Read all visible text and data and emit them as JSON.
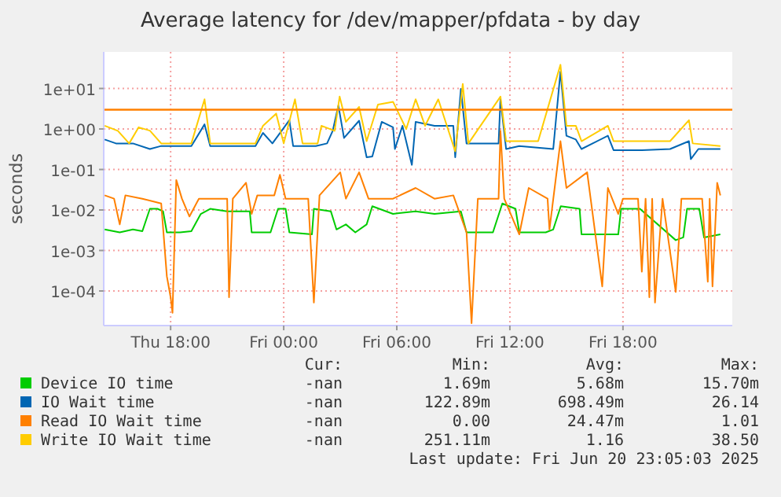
{
  "chart_data": {
    "type": "line",
    "title": "Average latency for /dev/mapper/pfdata - by day",
    "ylabel": "seconds",
    "log": "y",
    "xlim": [
      "2025-06-19T14:27",
      "2025-06-20T23:48"
    ],
    "xticks": [
      {
        "value": "2025-06-19T18:00",
        "label": "Thu 18:00"
      },
      {
        "value": "2025-06-20T00:00",
        "label": "Fri 00:00"
      },
      {
        "value": "2025-06-20T06:00",
        "label": "Fri 06:00"
      },
      {
        "value": "2025-06-20T12:00",
        "label": "Fri 12:00"
      },
      {
        "value": "2025-06-20T18:00",
        "label": "Fri 18:00"
      }
    ],
    "ylim": [
      1.4e-05,
      80
    ],
    "yticks": [
      {
        "value": 0.0001,
        "label": "1e-04"
      },
      {
        "value": 0.001,
        "label": "1e-03"
      },
      {
        "value": 0.01,
        "label": "1e-02"
      },
      {
        "value": 0.1,
        "label": "1e-01"
      },
      {
        "value": 1,
        "label": "1e+00"
      },
      {
        "value": 10,
        "label": "1e+01"
      }
    ],
    "grid": true,
    "legend": "bottom",
    "ref_lines": [
      {
        "axis": "y",
        "value": 3,
        "color": "#ff8000"
      }
    ],
    "series": [
      {
        "name": "Device IO time",
        "color": "#00cc00",
        "x": [
          "2025-06-19T14:30",
          "2025-06-19T15:18",
          "2025-06-19T16:00",
          "2025-06-19T16:30",
          "2025-06-19T16:54",
          "2025-06-19T17:18",
          "2025-06-19T17:36",
          "2025-06-19T17:48",
          "2025-06-19T18:30",
          "2025-06-19T19:06",
          "2025-06-19T19:36",
          "2025-06-19T20:06",
          "2025-06-19T21:00",
          "2025-06-19T22:12",
          "2025-06-19T22:18",
          "2025-06-19T23:18",
          "2025-06-19T23:42",
          "2025-06-20T00:06",
          "2025-06-20T00:18",
          "2025-06-20T01:30",
          "2025-06-20T01:36",
          "2025-06-20T02:30",
          "2025-06-20T02:48",
          "2025-06-20T03:18",
          "2025-06-20T03:48",
          "2025-06-20T04:24",
          "2025-06-20T04:42",
          "2025-06-20T05:48",
          "2025-06-20T07:00",
          "2025-06-20T08:00",
          "2025-06-20T09:24",
          "2025-06-20T09:42",
          "2025-06-20T11:06",
          "2025-06-20T11:36",
          "2025-06-20T12:18",
          "2025-06-20T12:30",
          "2025-06-20T13:54",
          "2025-06-20T14:18",
          "2025-06-20T14:42",
          "2025-06-20T15:42",
          "2025-06-20T15:48",
          "2025-06-20T17:45",
          "2025-06-20T17:54",
          "2025-06-20T18:54",
          "2025-06-20T20:48",
          "2025-06-20T21:12",
          "2025-06-20T21:24",
          "2025-06-20T22:03",
          "2025-06-20T22:18",
          "2025-06-20T23:10"
        ],
        "values": [
          0.0033,
          0.0028,
          0.0033,
          0.003,
          0.0107,
          0.0107,
          0.0093,
          0.0028,
          0.0028,
          0.003,
          0.008,
          0.0107,
          0.0093,
          0.0093,
          0.0028,
          0.0028,
          0.0107,
          0.0107,
          0.0028,
          0.0025,
          0.0107,
          0.0093,
          0.0033,
          0.0044,
          0.0028,
          0.0044,
          0.0124,
          0.008,
          0.0093,
          0.008,
          0.0093,
          0.0028,
          0.0028,
          0.0145,
          0.0107,
          0.0028,
          0.0028,
          0.0033,
          0.0124,
          0.0107,
          0.0025,
          0.0025,
          0.0107,
          0.0107,
          0.0018,
          0.0021,
          0.0107,
          0.0107,
          0.0021,
          0.0025
        ]
      },
      {
        "name": "IO Wait time",
        "color": "#0066b3",
        "x": [
          "2025-06-19T14:30",
          "2025-06-19T15:06",
          "2025-06-19T16:00",
          "2025-06-19T16:54",
          "2025-06-19T17:30",
          "2025-06-19T18:30",
          "2025-06-19T19:06",
          "2025-06-19T19:48",
          "2025-06-19T20:06",
          "2025-06-19T21:00",
          "2025-06-19T22:30",
          "2025-06-19T22:54",
          "2025-06-19T23:24",
          "2025-06-20T00:18",
          "2025-06-20T00:30",
          "2025-06-20T01:42",
          "2025-06-20T02:18",
          "2025-06-20T02:36",
          "2025-06-20T02:54",
          "2025-06-20T03:12",
          "2025-06-20T04:00",
          "2025-06-20T04:24",
          "2025-06-20T04:42",
          "2025-06-20T05:12",
          "2025-06-20T05:48",
          "2025-06-20T05:54",
          "2025-06-20T06:18",
          "2025-06-20T06:48",
          "2025-06-20T07:00",
          "2025-06-20T08:00",
          "2025-06-20T09:00",
          "2025-06-20T09:06",
          "2025-06-20T09:24",
          "2025-06-20T09:42",
          "2025-06-20T11:24",
          "2025-06-20T11:30",
          "2025-06-20T11:48",
          "2025-06-20T12:30",
          "2025-06-20T14:18",
          "2025-06-20T14:41",
          "2025-06-20T15:00",
          "2025-06-20T15:30",
          "2025-06-20T15:48",
          "2025-06-20T17:12",
          "2025-06-20T17:30",
          "2025-06-20T19:00",
          "2025-06-20T20:30",
          "2025-06-20T21:30",
          "2025-06-20T21:36",
          "2025-06-20T22:00",
          "2025-06-20T23:10"
        ],
        "values": [
          0.55,
          0.44,
          0.44,
          0.32,
          0.38,
          0.38,
          0.38,
          1.3,
          0.38,
          0.38,
          0.38,
          0.8,
          0.44,
          1.65,
          0.38,
          0.38,
          0.44,
          0.9,
          3.8,
          0.6,
          1.6,
          0.2,
          0.21,
          1.5,
          1.1,
          0.32,
          1.2,
          0.13,
          1.5,
          1.2,
          1.2,
          0.2,
          9.8,
          0.44,
          0.44,
          5.4,
          0.32,
          0.38,
          0.32,
          26,
          0.68,
          0.55,
          0.32,
          0.68,
          0.3,
          0.3,
          0.32,
          0.5,
          0.18,
          0.32,
          0.32
        ]
      },
      {
        "name": "Read IO Wait time",
        "color": "#ff8000",
        "x": [
          "2025-06-19T14:30",
          "2025-06-19T15:00",
          "2025-06-19T15:18",
          "2025-06-19T15:36",
          "2025-06-19T16:30",
          "2025-06-19T17:30",
          "2025-06-19T17:48",
          "2025-06-19T18:00",
          "2025-06-19T18:06",
          "2025-06-19T18:18",
          "2025-06-19T18:36",
          "2025-06-19T19:00",
          "2025-06-19T19:30",
          "2025-06-19T21:00",
          "2025-06-19T21:06",
          "2025-06-19T21:18",
          "2025-06-19T22:00",
          "2025-06-19T22:18",
          "2025-06-19T22:36",
          "2025-06-19T23:30",
          "2025-06-19T23:48",
          "2025-06-20T00:06",
          "2025-06-20T01:18",
          "2025-06-20T01:36",
          "2025-06-20T01:54",
          "2025-06-20T03:00",
          "2025-06-20T03:18",
          "2025-06-20T04:00",
          "2025-06-20T04:30",
          "2025-06-20T05:48",
          "2025-06-20T07:00",
          "2025-06-20T08:00",
          "2025-06-20T09:00",
          "2025-06-20T09:42",
          "2025-06-20T09:58",
          "2025-06-20T10:18",
          "2025-06-20T11:24",
          "2025-06-20T11:30",
          "2025-06-20T11:42",
          "2025-06-20T12:30",
          "2025-06-20T13:00",
          "2025-06-20T14:00",
          "2025-06-20T14:06",
          "2025-06-20T14:41",
          "2025-06-20T15:00",
          "2025-06-20T16:06",
          "2025-06-20T16:54",
          "2025-06-20T17:12",
          "2025-06-20T17:45",
          "2025-06-20T18:00",
          "2025-06-20T18:48",
          "2025-06-20T19:00",
          "2025-06-20T19:12",
          "2025-06-20T19:24",
          "2025-06-20T19:33",
          "2025-06-20T19:42",
          "2025-06-20T20:06",
          "2025-06-20T20:48",
          "2025-06-20T21:06",
          "2025-06-20T22:12",
          "2025-06-20T22:30",
          "2025-06-20T22:36",
          "2025-06-20T22:45",
          "2025-06-20T23:00",
          "2025-06-20T23:10"
        ],
        "values": [
          0.023,
          0.019,
          0.0044,
          0.023,
          0.019,
          0.0145,
          0.00023,
          7e-05,
          2.9e-05,
          0.055,
          0.019,
          0.0069,
          0.019,
          0.019,
          7e-05,
          0.019,
          0.047,
          0.008,
          0.023,
          0.023,
          0.074,
          0.019,
          0.019,
          5.2e-05,
          0.023,
          0.085,
          0.019,
          0.085,
          0.019,
          0.019,
          0.035,
          0.019,
          0.023,
          0.0028,
          1.6e-05,
          0.019,
          0.019,
          0.9,
          0.019,
          0.0025,
          0.035,
          0.019,
          0.0033,
          0.5,
          0.035,
          0.085,
          0.00013,
          0.035,
          0.008,
          0.019,
          0.019,
          0.0003,
          0.019,
          7e-05,
          0.019,
          5.2e-05,
          0.019,
          9.5e-05,
          0.019,
          0.019,
          0.00017,
          0.019,
          0.00013,
          0.047,
          0.023
        ]
      },
      {
        "name": "Write IO Wait time",
        "color": "#ffcc00",
        "x": [
          "2025-06-19T14:30",
          "2025-06-19T15:12",
          "2025-06-19T15:48",
          "2025-06-19T16:18",
          "2025-06-19T16:54",
          "2025-06-19T17:30",
          "2025-06-19T19:06",
          "2025-06-19T19:48",
          "2025-06-19T20:06",
          "2025-06-19T22:30",
          "2025-06-19T22:54",
          "2025-06-19T23:36",
          "2025-06-20T00:00",
          "2025-06-20T00:36",
          "2025-06-20T01:00",
          "2025-06-20T01:48",
          "2025-06-20T02:00",
          "2025-06-20T02:42",
          "2025-06-20T02:58",
          "2025-06-20T03:18",
          "2025-06-20T04:00",
          "2025-06-20T04:24",
          "2025-06-20T05:00",
          "2025-06-20T05:48",
          "2025-06-20T06:30",
          "2025-06-20T07:00",
          "2025-06-20T07:30",
          "2025-06-20T08:12",
          "2025-06-20T09:06",
          "2025-06-20T09:30",
          "2025-06-20T09:48",
          "2025-06-20T11:30",
          "2025-06-20T11:48",
          "2025-06-20T13:30",
          "2025-06-20T14:41",
          "2025-06-20T15:00",
          "2025-06-20T15:30",
          "2025-06-20T15:48",
          "2025-06-20T17:12",
          "2025-06-20T17:30",
          "2025-06-20T20:30",
          "2025-06-20T21:30",
          "2025-06-20T21:42",
          "2025-06-20T23:10"
        ],
        "values": [
          1.2,
          0.9,
          0.44,
          1.1,
          0.91,
          0.44,
          0.44,
          5.4,
          0.44,
          0.44,
          1.2,
          2.4,
          0.44,
          5.4,
          0.44,
          0.44,
          1.2,
          0.9,
          6.3,
          1.5,
          3.5,
          0.5,
          4,
          4.7,
          1.0,
          5.4,
          1.2,
          5.4,
          0.28,
          13,
          0.44,
          6.3,
          0.5,
          0.5,
          38.5,
          1.2,
          1.2,
          0.5,
          1.2,
          0.5,
          0.5,
          1.65,
          0.44,
          0.38
        ]
      }
    ],
    "annotations": [
      "Cur:",
      "Min:",
      "Avg:",
      "Max:",
      "-nan",
      "1.69m",
      "5.68m",
      "15.70m",
      "-nan",
      "122.89m",
      "698.49m",
      "26.14",
      "-nan",
      "0.00",
      "24.47m",
      "1.01",
      "-nan",
      "251.11m",
      "1.16",
      "38.50",
      "Last update: Fri Jun 20 23:05:03 2025"
    ]
  }
}
